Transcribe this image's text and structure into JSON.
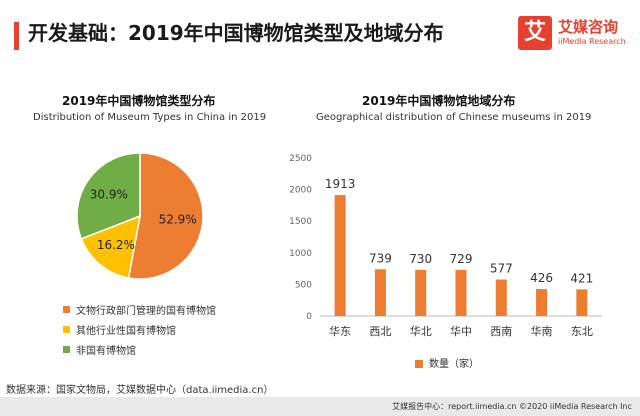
{
  "header": {
    "title": "开发基础：2019年中国博物馆类型及地域分布"
  },
  "logo": {
    "mark": "艾",
    "name": "艾媒咨询",
    "sub": "iiMedia Research"
  },
  "colors": {
    "accent": "#e8402f",
    "orange": "#ed7d31",
    "yellow": "#ffc000",
    "green": "#70ad47"
  },
  "chart_data": [
    {
      "type": "pie",
      "title": "2019年中国博物馆类型分布",
      "subtitle": "Distribution of Museum Types in China in 2019",
      "labels": [
        "文物行政部门管理的国有博物馆",
        "其他行业性国有博物馆",
        "非国有博物馆"
      ],
      "values": [
        52.9,
        16.2,
        30.9
      ],
      "value_labels": [
        "52.9%",
        "16.2%",
        "30.9%"
      ],
      "colors": [
        "#ed7d31",
        "#ffc000",
        "#70ad47"
      ],
      "legend_position": "bottom-left"
    },
    {
      "type": "bar",
      "title": "2019年中国博物馆地域分布",
      "subtitle": "Geographical distribution of Chinese museums in 2019",
      "categories": [
        "华东",
        "西北",
        "华北",
        "华中",
        "西南",
        "华南",
        "东北"
      ],
      "series": [
        {
          "name": "数量（家）",
          "values": [
            1913,
            739,
            730,
            729,
            577,
            426,
            421
          ],
          "color": "#ed7d31"
        }
      ],
      "ylim": [
        0,
        2500
      ],
      "yticks": [
        0,
        500,
        1000,
        1500,
        2000,
        2500
      ],
      "grid": false,
      "legend_position": "bottom"
    }
  ],
  "source": "数据来源：国家文物局，艾媒数据中心（data.iimedia.cn）",
  "footer": "艾媒报告中心：report.iimedia.cn  ©2020  iiMedia Research  Inc"
}
